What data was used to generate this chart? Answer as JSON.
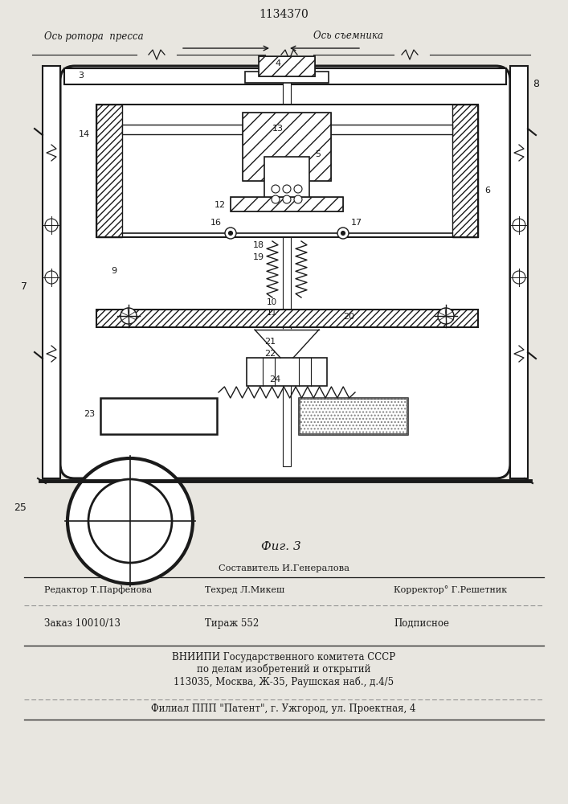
{
  "patent_number": "1134370",
  "bg_color": "#e8e6e0",
  "line_color": "#1a1a1a",
  "title_axis1": "Ось ротора  пресса",
  "title_axis2": "Ось съемника",
  "fig_caption": "Фиг. 3",
  "footer_line1": "Составитель И.Генералова",
  "footer_line2_left": "Редактор Т.Парфенова",
  "footer_line2_mid": "Техред Л.Микеш",
  "footer_line2_right": "Корректор° Г.Решетник",
  "footer_line3_left": "Заказ 10010/13",
  "footer_line3_mid": "Тираж 552",
  "footer_line3_right": "Подписное",
  "footer_line4": "ВНИИПИ Государственного комитета СССР",
  "footer_line5": "по делам изобретений и открытий",
  "footer_line6": "113035, Москва, Ж-35, Раушская наб., д.4/5",
  "footer_line7": "Филиал ППП \"Патент\", г. Ужгород, ул. Проектная, 4"
}
